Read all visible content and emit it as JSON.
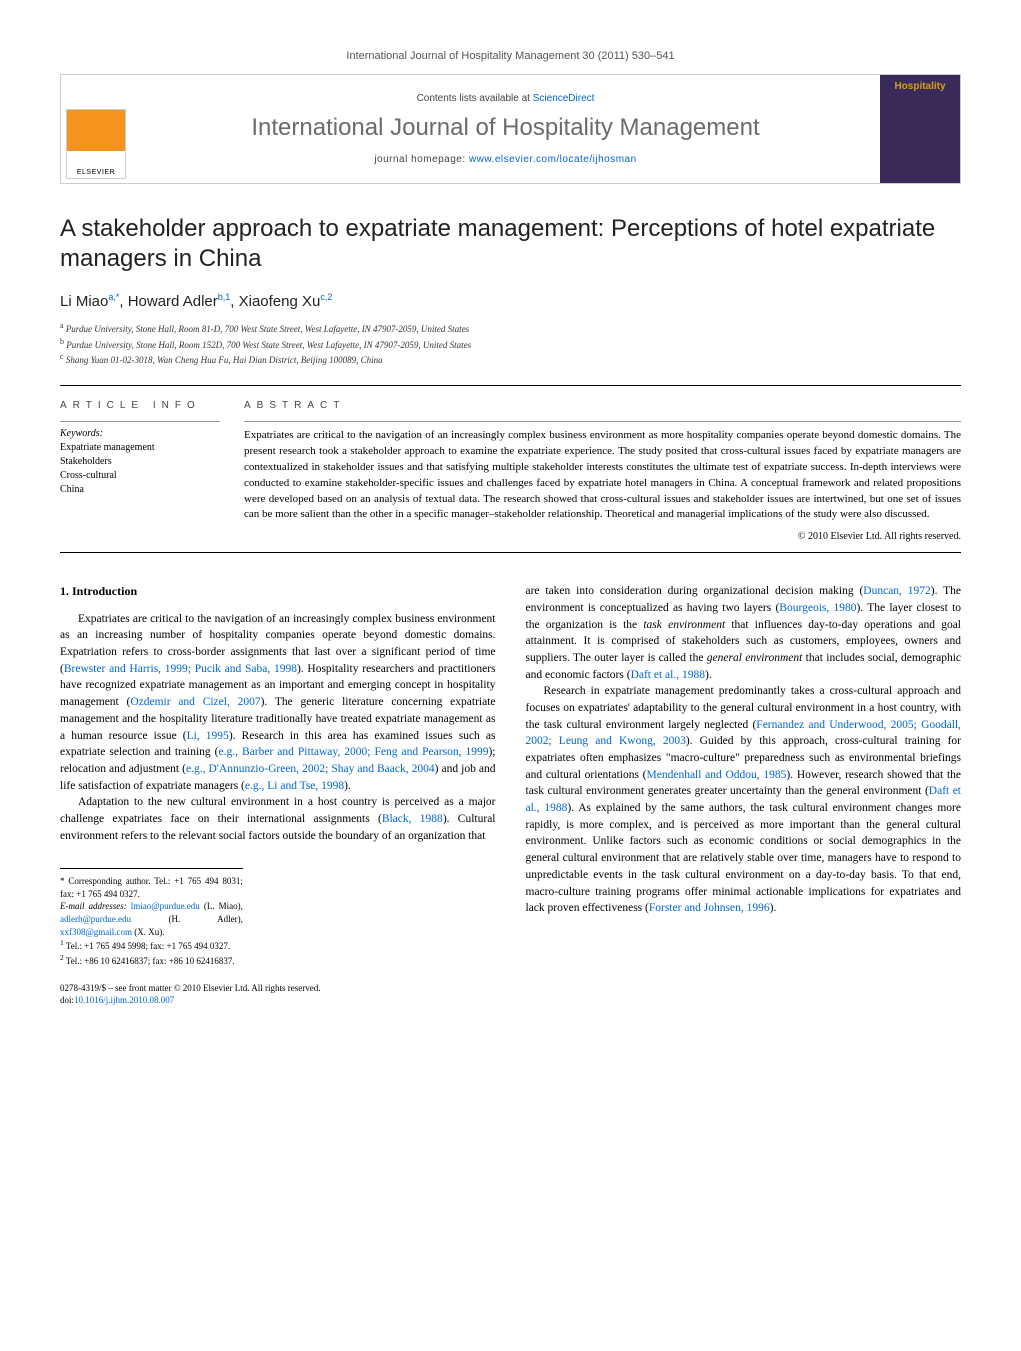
{
  "header": {
    "citation_prefix": "International Journal of Hospitality Management 30 (2011) 530–541",
    "contents_text": "Contents lists available at ",
    "contents_link": "ScienceDirect",
    "journal_name": "International Journal of Hospitality Management",
    "homepage_label": "journal homepage: ",
    "homepage_url": "www.elsevier.com/locate/ijhosman",
    "elsevier_text": "ELSEVIER",
    "cover_text": "Hospitality"
  },
  "article": {
    "title": "A stakeholder approach to expatriate management: Perceptions of hotel expatriate managers in China",
    "authors_html": "Li Miao<sup>a,*</sup>, Howard Adler<sup>b,1</sup>, Xiaofeng Xu<sup>c,2</sup>",
    "affiliations": {
      "a": "Purdue University, Stone Hall, Room 81-D, 700 West State Street, West Lafayette, IN 47907-2059, United States",
      "b": "Purdue University, Stone Hall, Room 152D, 700 West State Street, West Lafayette, IN 47907-2059, United States",
      "c": "Shang Yuan 01-02-3018, Wan Cheng Hua Fu, Hai Dian District, Beijing 100089, China"
    }
  },
  "info": {
    "heading": "ARTICLE INFO",
    "keywords_label": "Keywords:",
    "keywords": [
      "Expatriate management",
      "Stakeholders",
      "Cross-cultural",
      "China"
    ]
  },
  "abstract": {
    "heading": "ABSTRACT",
    "text": "Expatriates are critical to the navigation of an increasingly complex business environment as more hospitality companies operate beyond domestic domains. The present research took a stakeholder approach to examine the expatriate experience. The study posited that cross-cultural issues faced by expatriate managers are contextualized in stakeholder issues and that satisfying multiple stakeholder interests constitutes the ultimate test of expatriate success. In-depth interviews were conducted to examine stakeholder-specific issues and challenges faced by expatriate hotel managers in China. A conceptual framework and related propositions were developed based on an analysis of textual data. The research showed that cross-cultural issues and stakeholder issues are intertwined, but one set of issues can be more salient than the other in a specific manager–stakeholder relationship. Theoretical and managerial implications of the study were also discussed.",
    "copyright": "© 2010 Elsevier Ltd. All rights reserved."
  },
  "body": {
    "section_heading": "1. Introduction",
    "col1_p1": "Expatriates are critical to the navigation of an increasingly complex business environment as an increasing number of hospitality companies operate beyond domestic domains. Expatriation refers to cross-border assignments that last over a significant period of time (Brewster and Harris, 1999; Pucik and Saba, 1998). Hospitality researchers and practitioners have recognized expatriate management as an important and emerging concept in hospitality management (Ozdemir and Cizel, 2007). The generic literature concerning expatriate management and the hospitality literature traditionally have treated expatriate management as a human resource issue (Li, 1995). Research in this area has examined issues such as expatriate selection and training (e.g., Barber and Pittaway, 2000; Feng and Pearson, 1999); relocation and adjustment (e.g., D'Annunzio-Green, 2002; Shay and Baack, 2004) and job and life satisfaction of expatriate managers (e.g., Li and Tse, 1998).",
    "col1_p2": "Adaptation to the new cultural environment in a host country is perceived as a major challenge expatriates face on their international assignments (Black, 1988). Cultural environment refers to the relevant social factors outside the boundary of an organization that",
    "col2_p1": "are taken into consideration during organizational decision making (Duncan, 1972). The environment is conceptualized as having two layers (Bourgeois, 1980). The layer closest to the organization is the task environment that influences day-to-day operations and goal attainment. It is comprised of stakeholders such as customers, employees, owners and suppliers. The outer layer is called the general environment that includes social, demographic and economic factors (Daft et al., 1988).",
    "col2_p2": "Research in expatriate management predominantly takes a cross-cultural approach and focuses on expatriates' adaptability to the general cultural environment in a host country, with the task cultural environment largely neglected (Fernandez and Underwood, 2005; Goodall, 2002; Leung and Kwong, 2003). Guided by this approach, cross-cultural training for expatriates often emphasizes \"macro-culture\" preparedness such as environmental briefings and cultural orientations (Mendenhall and Oddou, 1985). However, research showed that the task cultural environment generates greater uncertainty than the general environment (Daft et al., 1988). As explained by the same authors, the task cultural environment changes more rapidly, is more complex, and is perceived as more important than the general cultural environment. Unlike factors such as economic conditions or social demographics in the general cultural environment that are relatively stable over time, managers have to respond to unpredictable events in the task cultural environment on a day-to-day basis. To that end, macro-culture training programs offer minimal actionable implications for expatriates and lack proven effectiveness (Forster and Johnsen, 1996)."
  },
  "footnotes": {
    "corr": "* Corresponding author. Tel.: +1 765 494 8031; fax: +1 765 494 0327.",
    "emails_label": "E-mail addresses:",
    "email1": "lmiao@purdue.edu",
    "email1_who": " (L. Miao), ",
    "email2": "adlerh@purdue.edu",
    "email2_who": " (H. Adler), ",
    "email3": "xxf308@gmail.com",
    "email3_who": " (X. Xu).",
    "fn1": "Tel.: +1 765 494 5998; fax: +1 765 494 0327.",
    "fn2": "Tel.: +86 10 62416837; fax: +86 10 62416837."
  },
  "footer": {
    "line1": "0278-4319/$ – see front matter © 2010 Elsevier Ltd. All rights reserved.",
    "doi_label": "doi:",
    "doi": "10.1016/j.ijhm.2010.08.007"
  },
  "colors": {
    "link": "#0066cc",
    "journal_gray": "#6b6b6b",
    "cover_bg": "#3a2a5a",
    "cover_gold": "#d4a017",
    "elsevier_orange": "#f7941e"
  }
}
